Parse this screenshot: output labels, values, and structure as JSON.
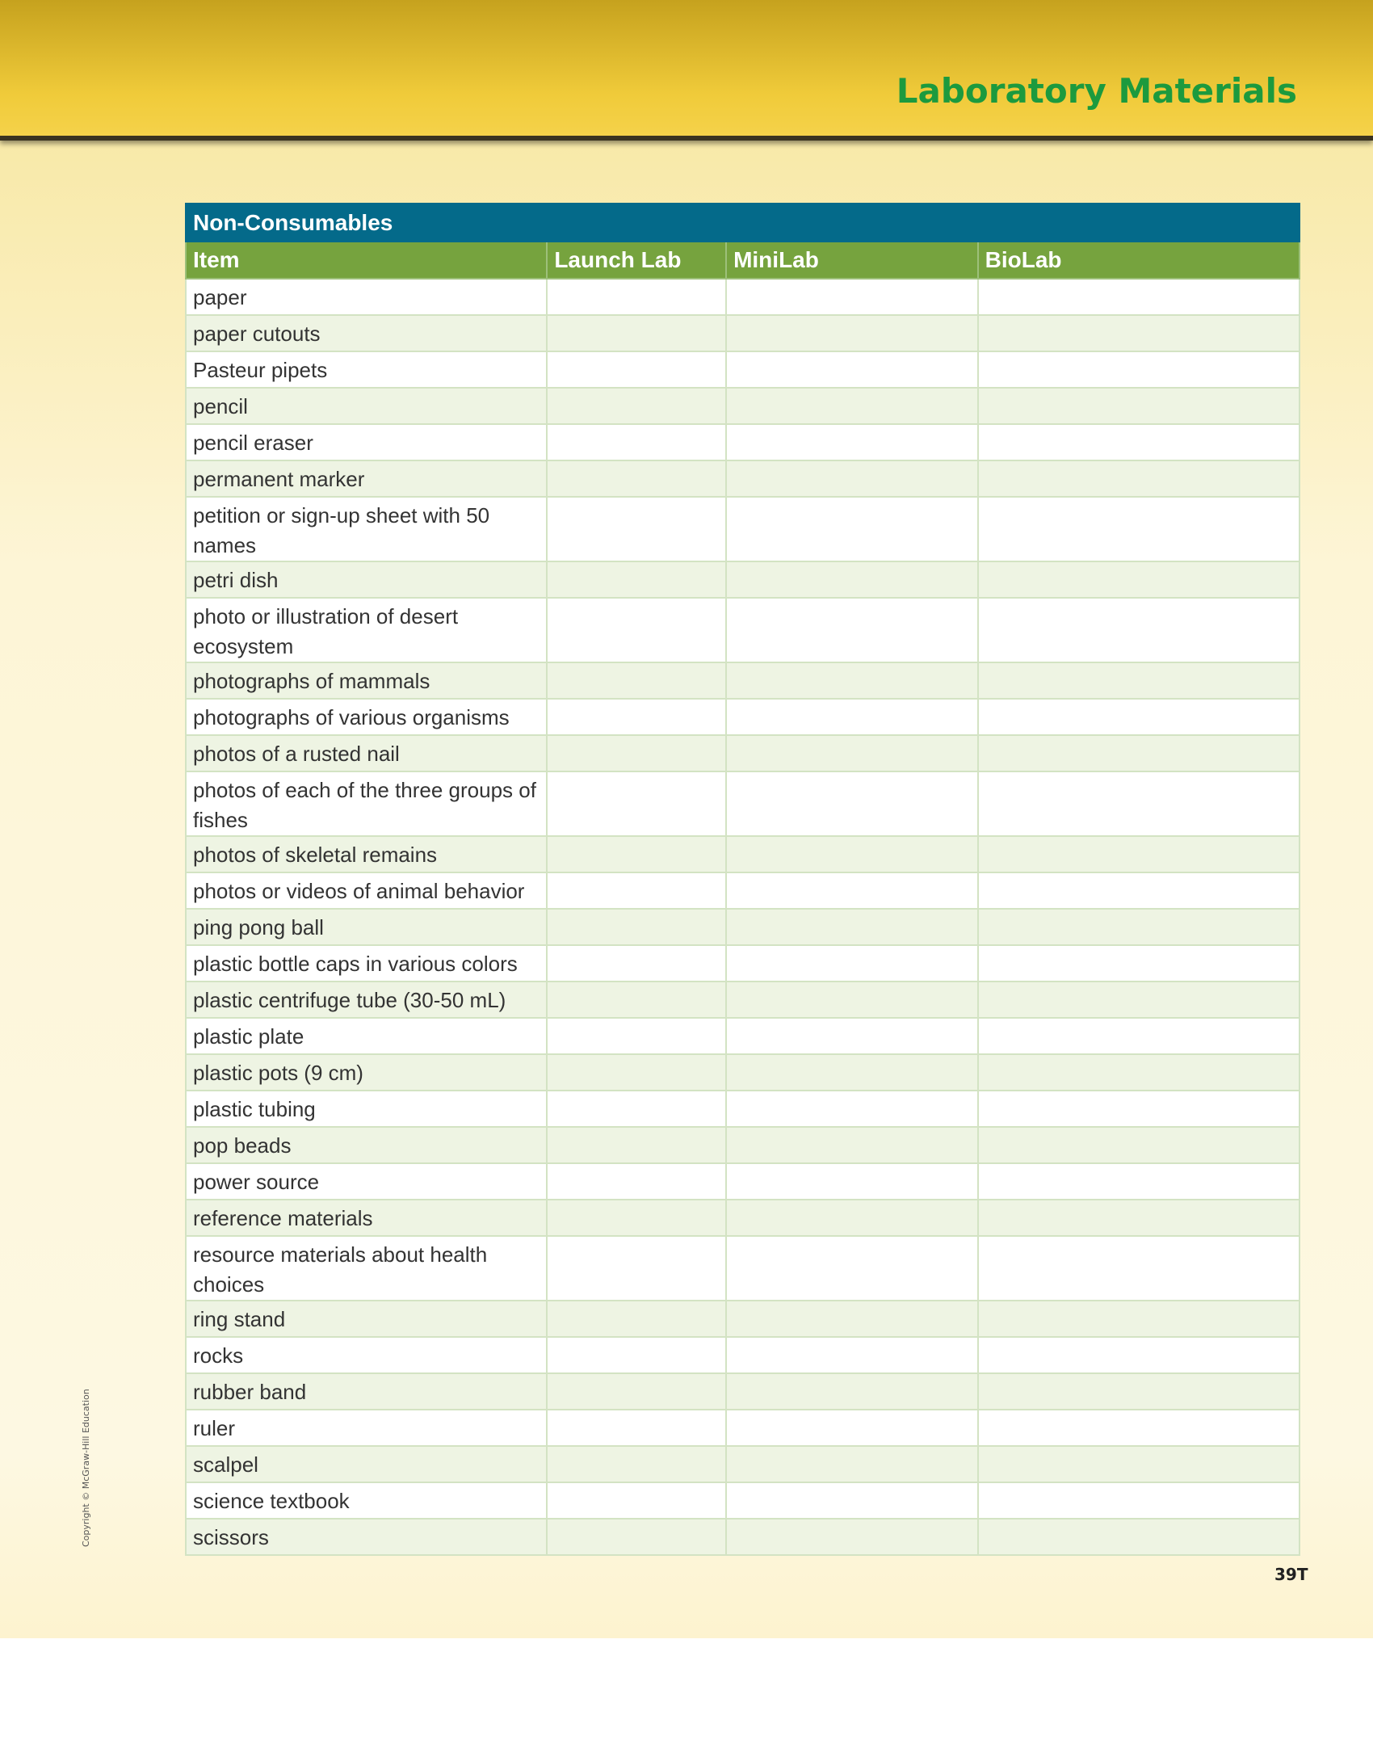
{
  "header": {
    "title": "Laboratory Materials"
  },
  "table": {
    "title": "Non-Consumables",
    "columns": [
      "Item",
      "Launch Lab",
      "MiniLab",
      "BioLab"
    ],
    "rows": [
      "paper",
      "paper cutouts",
      "Pasteur pipets",
      "pencil",
      "pencil eraser",
      "permanent marker",
      "petition or sign-up sheet with 50 names",
      "petri dish",
      "photo or illustration of desert ecosystem",
      "photographs of mammals",
      "photographs of various organisms",
      "photos of a rusted nail",
      "photos of each of the three groups of fishes",
      "photos of skeletal remains",
      "photos or videos of animal behavior",
      "ping pong ball",
      "plastic bottle caps in various colors",
      "plastic centrifuge tube (30-50 mL)",
      "plastic plate",
      "plastic pots (9 cm)",
      "plastic tubing",
      "pop beads",
      "power source",
      "reference materials",
      "resource materials about health choices",
      "ring stand",
      "rocks",
      "rubber band",
      "ruler",
      "scalpel",
      "science textbook",
      "scissors"
    ]
  },
  "copyright": "Copyright © McGraw-Hill Education",
  "page_number": "39T"
}
